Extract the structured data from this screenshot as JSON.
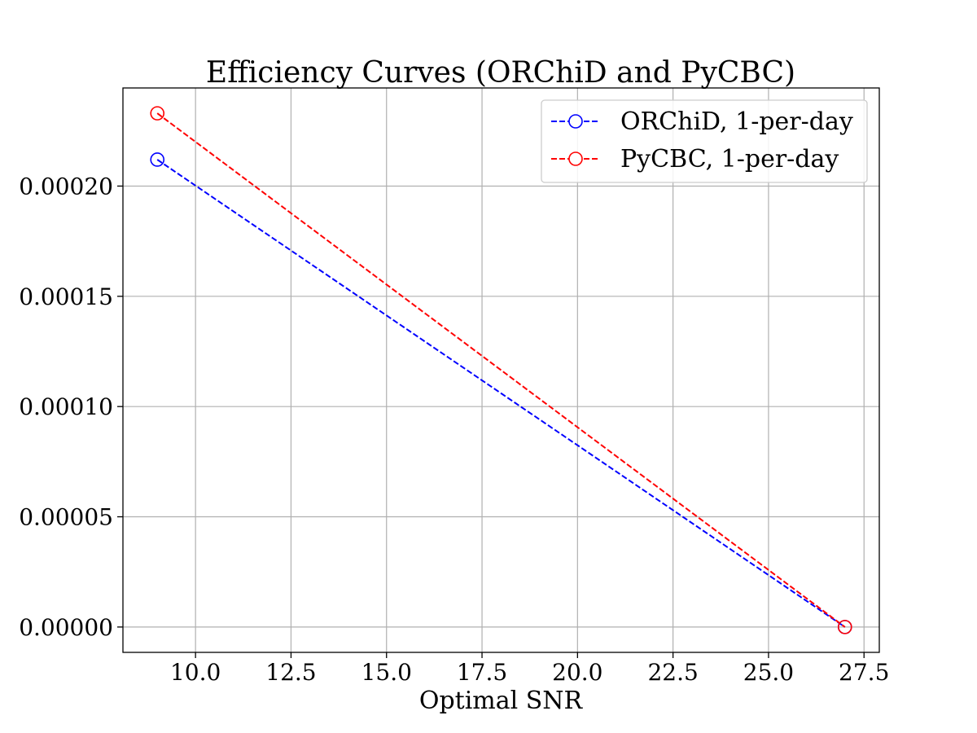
{
  "chart_data": {
    "type": "line",
    "title": "Efficiency Curves (ORChiD and PyCBC)",
    "xlabel": "Optimal SNR",
    "ylabel": "",
    "xlim": [
      8.1,
      27.9
    ],
    "ylim": [
      -1.15e-05,
      0.0002445
    ],
    "x_ticks": [
      10.0,
      12.5,
      15.0,
      17.5,
      20.0,
      22.5,
      25.0,
      27.5
    ],
    "x_tick_labels": [
      "10.0",
      "12.5",
      "15.0",
      "17.5",
      "20.0",
      "22.5",
      "25.0",
      "27.5"
    ],
    "y_ticks": [
      0.0,
      5e-05,
      0.0001,
      0.00015,
      0.0002
    ],
    "y_tick_labels": [
      "0.00000",
      "0.00005",
      "0.00010",
      "0.00015",
      "0.00020"
    ],
    "grid": true,
    "legend_position": "top-right",
    "series": [
      {
        "name": "ORChiD, 1-per-day",
        "color": "#0000ff",
        "linestyle": "dashed",
        "marker": "open-circle",
        "x": [
          9.0,
          27.0
        ],
        "y": [
          0.000212,
          0.0
        ]
      },
      {
        "name": "PyCBC, 1-per-day",
        "color": "#ff0000",
        "linestyle": "dashed",
        "marker": "open-circle",
        "x": [
          9.0,
          27.0
        ],
        "y": [
          0.000233,
          0.0
        ]
      }
    ]
  }
}
